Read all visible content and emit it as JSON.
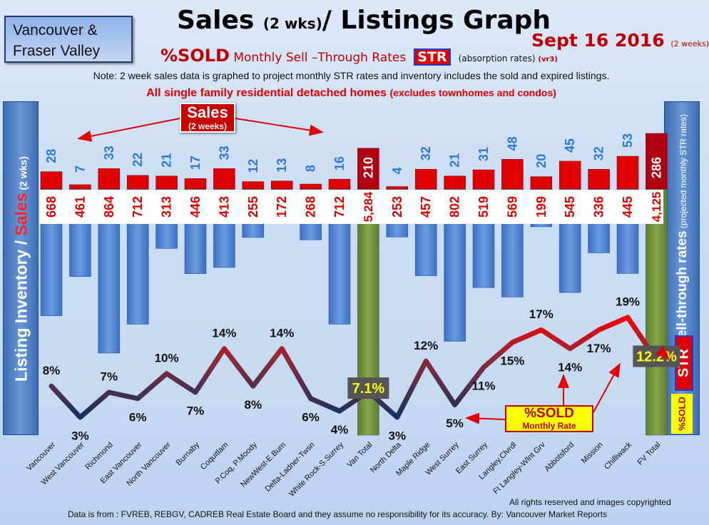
{
  "header": {
    "region_line1": "Vancouver &",
    "region_line2": "Fraser Valley",
    "title_main": "Sales ",
    "title_small": "(2 wks)",
    "title_rest": "/ Listings Graph",
    "date": "Sept 16 2016",
    "date_small": "(2 weeks)",
    "subtitle_sold": "%SOLD",
    "subtitle_rest": " Monthly Sell –Through Rates",
    "subtitle_str": "STR",
    "subtitle_abs": "(absorption rates)",
    "subtitle_ver": "(vr3)",
    "note": "Note: 2 week sales data is graphed to project monthly STR rates and inventory includes the sold and expired listings.",
    "homes_note": "All single family residential detached homes",
    "homes_note_small": "(excludes townhomes and condos)"
  },
  "left_banner": {
    "part1": "Listing Inventory / ",
    "part2": "Sales",
    "part3": " (2  wks)"
  },
  "right_banner": {
    "main": "Sell-through rates",
    "small": "  (projected monthly STR rates)",
    "str": "STR",
    "sold": "%SOLD"
  },
  "callouts": {
    "sales_big": "Sales",
    "sales_small": "(2 weeks)",
    "sold_big": "%SOLD",
    "sold_small": "Monthly Rate"
  },
  "footer": {
    "rights": "All rights reserved and  images copyrighted",
    "source": "Data is from : FVREB, REBGV, CADREB Real Estate Board and they assume no responsibility for its accuracy. By: Vancouver Market Reports"
  },
  "colors": {
    "sales_bar": "#e00000",
    "listing_bar": "#4a7fd0",
    "total_bar": "#6e8f3a",
    "line_low": "#17325e",
    "line_high": "#ff0000",
    "sold_label_bg": "#ffff66"
  },
  "chart_data": {
    "type": "bar",
    "categories": [
      "Vancouver",
      "West Vancouver",
      "Richmond",
      "East Vancouver",
      "North Vancouver",
      "Burnaby",
      "Coquitlam",
      "P.Coq, P.Moody",
      "NewWest-E.Burn",
      "Delta-Ladner-Twsn",
      "White Rock-S.Surrey",
      "Van Total",
      "North Delta",
      "Maple Ridge",
      "West Surrey",
      "East Surrey",
      "Langley,Clvrdl",
      "Ft Langley-Wlnt Grv",
      "Abbotsford",
      "Mission",
      "Chilliwack",
      "FV Total"
    ],
    "series": [
      {
        "name": "Sales",
        "values": [
          28,
          7,
          33,
          22,
          21,
          17,
          33,
          12,
          13,
          8,
          16,
          210,
          4,
          32,
          21,
          31,
          48,
          20,
          45,
          32,
          53,
          286
        ]
      },
      {
        "name": "Listing Inventory",
        "values": [
          668,
          461,
          864,
          712,
          313,
          446,
          413,
          255,
          172,
          268,
          712,
          5284,
          253,
          457,
          802,
          519,
          569,
          199,
          545,
          336,
          445,
          4125
        ]
      },
      {
        "name": "%SOLD",
        "values": [
          8,
          3,
          7,
          6,
          10,
          7,
          14,
          8,
          14,
          6,
          4,
          7.1,
          3,
          12,
          5,
          11,
          15,
          17,
          14,
          17,
          19,
          12.2
        ]
      }
    ],
    "inventory_labels": [
      "668",
      "461",
      "864",
      "712",
      "313",
      "446",
      "413",
      "255",
      "172",
      "268",
      "712",
      "5,284",
      "253",
      "457",
      "802",
      "519",
      "569",
      "199",
      "545",
      "336",
      "445",
      "4,125"
    ],
    "sold_labels": [
      "8%",
      "3%",
      "7%",
      "6%",
      "10%",
      "7%",
      "14%",
      "8%",
      "14%",
      "6%",
      "4%",
      "7.1%",
      "3%",
      "12%",
      "5%",
      "11%",
      "15%",
      "17%",
      "14%",
      "17%",
      "19%",
      "12.2%"
    ],
    "total_indices": [
      11,
      21
    ],
    "legend": "none",
    "grid": false
  }
}
